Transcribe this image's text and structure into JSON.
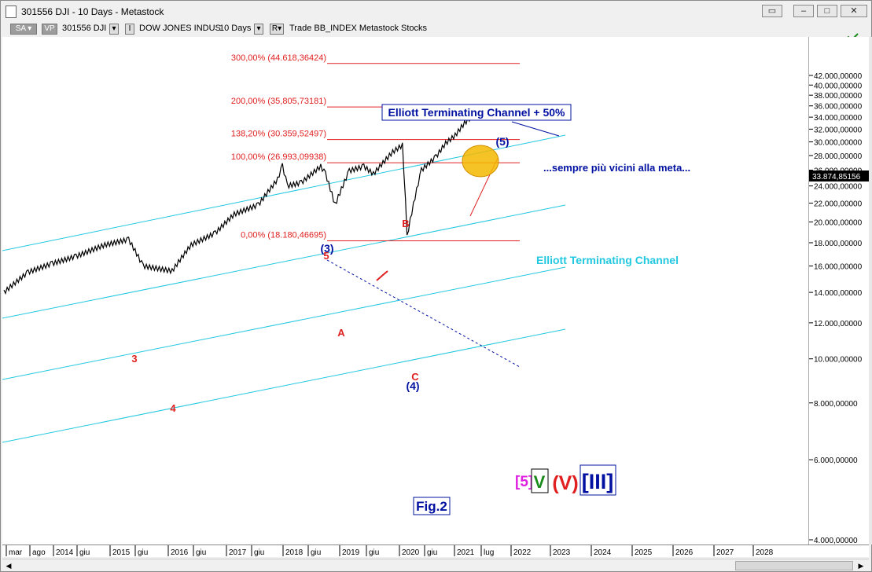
{
  "window": {
    "title": "301556 DJI - 10 Days - Metastock"
  },
  "toolbar": {
    "sa_label": "SA",
    "vp_label": "VP",
    "symbol": "301556 DJI",
    "name": "DOW JONES INDUS",
    "period": "10 Days",
    "r_label": "R",
    "trade_text": "Trade  BB_INDEX  Metastock  Stocks"
  },
  "colors": {
    "fib": "#e02020",
    "channel": "#22c8e0",
    "wave_blue": "#0010a0",
    "wave_red": "#e02020",
    "price": "#000000",
    "highlight": "#f5b800"
  },
  "fib_levels": [
    {
      "label": "300,00% (44.618,36424)",
      "value": 44618.36424
    },
    {
      "label": "200,00% (35,805,73181)",
      "value": 35805.73181
    },
    {
      "label": "138,20% (30.359,52497)",
      "value": 30359.52497
    },
    {
      "label": "100,00% (26.993,09938)",
      "value": 26993.09938
    },
    {
      "label": "0,00% (18.180,46695)",
      "value": 18180.46695
    }
  ],
  "annotations": {
    "channel_plus_50": "Elliott Terminating Channel + 50%",
    "channel": "Elliott Terminating Channel",
    "comment": "...sempre più vicini alla meta...",
    "fig": "Fig.2",
    "wave_5": "(5)",
    "wave_3": "(3)",
    "wave_4": "(4)",
    "wave_A": "A",
    "wave_B": "B",
    "wave_C": "C",
    "minor_3": "3",
    "minor_4": "4",
    "minor_5": "5",
    "deg_5": "[5]",
    "deg_V": "V",
    "deg_V_circle": "(V)",
    "deg_III": "[III]"
  },
  "last_price": "33.874,85156",
  "chart_data": {
    "type": "line",
    "title": "",
    "ylim": [
      4000,
      46000
    ],
    "y_ticks": [
      "4.000,00000",
      "6.000,00000",
      "8.000,00000",
      "10.000,00000",
      "12.000,00000",
      "14.000,00000",
      "16.000,00000",
      "18.000,00000",
      "20.000,00000",
      "22.000,00000",
      "24.000,00000",
      "26.000,00000",
      "28.000,00000",
      "30.000,00000",
      "32.000,00000",
      "34.000,00000",
      "36.000,00000",
      "38.000,00000",
      "40.000,00000",
      "42.000,00000"
    ],
    "x_labels": [
      "mar",
      "ago",
      "2014",
      "giu",
      "2015",
      "giu",
      "2016",
      "giu",
      "2017",
      "giu",
      "2018",
      "giu",
      "2019",
      "giu",
      "2020",
      "giu",
      "2021",
      "lug",
      "2022",
      "2023",
      "2024",
      "2025",
      "2026",
      "2027",
      "2028"
    ],
    "series": [
      {
        "x": [
          "2013-03",
          "2013-08",
          "2014-01",
          "2014-06",
          "2014-12",
          "2015-05",
          "2015-08",
          "2016-02",
          "2016-06",
          "2016-11",
          "2017-03",
          "2017-08",
          "2017-12",
          "2018-01",
          "2018-02",
          "2018-05",
          "2018-09",
          "2018-10",
          "2018-12",
          "2019-03",
          "2019-06",
          "2019-08",
          "2019-12",
          "2020-02",
          "2020-03",
          "2020-06",
          "2020-09",
          "2020-11",
          "2021-01",
          "2021-03",
          "2021-05"
        ],
        "values": [
          14000,
          15500,
          16200,
          16800,
          17800,
          18300,
          16000,
          15600,
          17800,
          18900,
          20800,
          21800,
          24800,
          26600,
          24000,
          24400,
          26500,
          25500,
          21800,
          25900,
          26500,
          25500,
          28500,
          29500,
          18500,
          26000,
          27800,
          29800,
          31000,
          33000,
          34500
        ]
      }
    ]
  }
}
